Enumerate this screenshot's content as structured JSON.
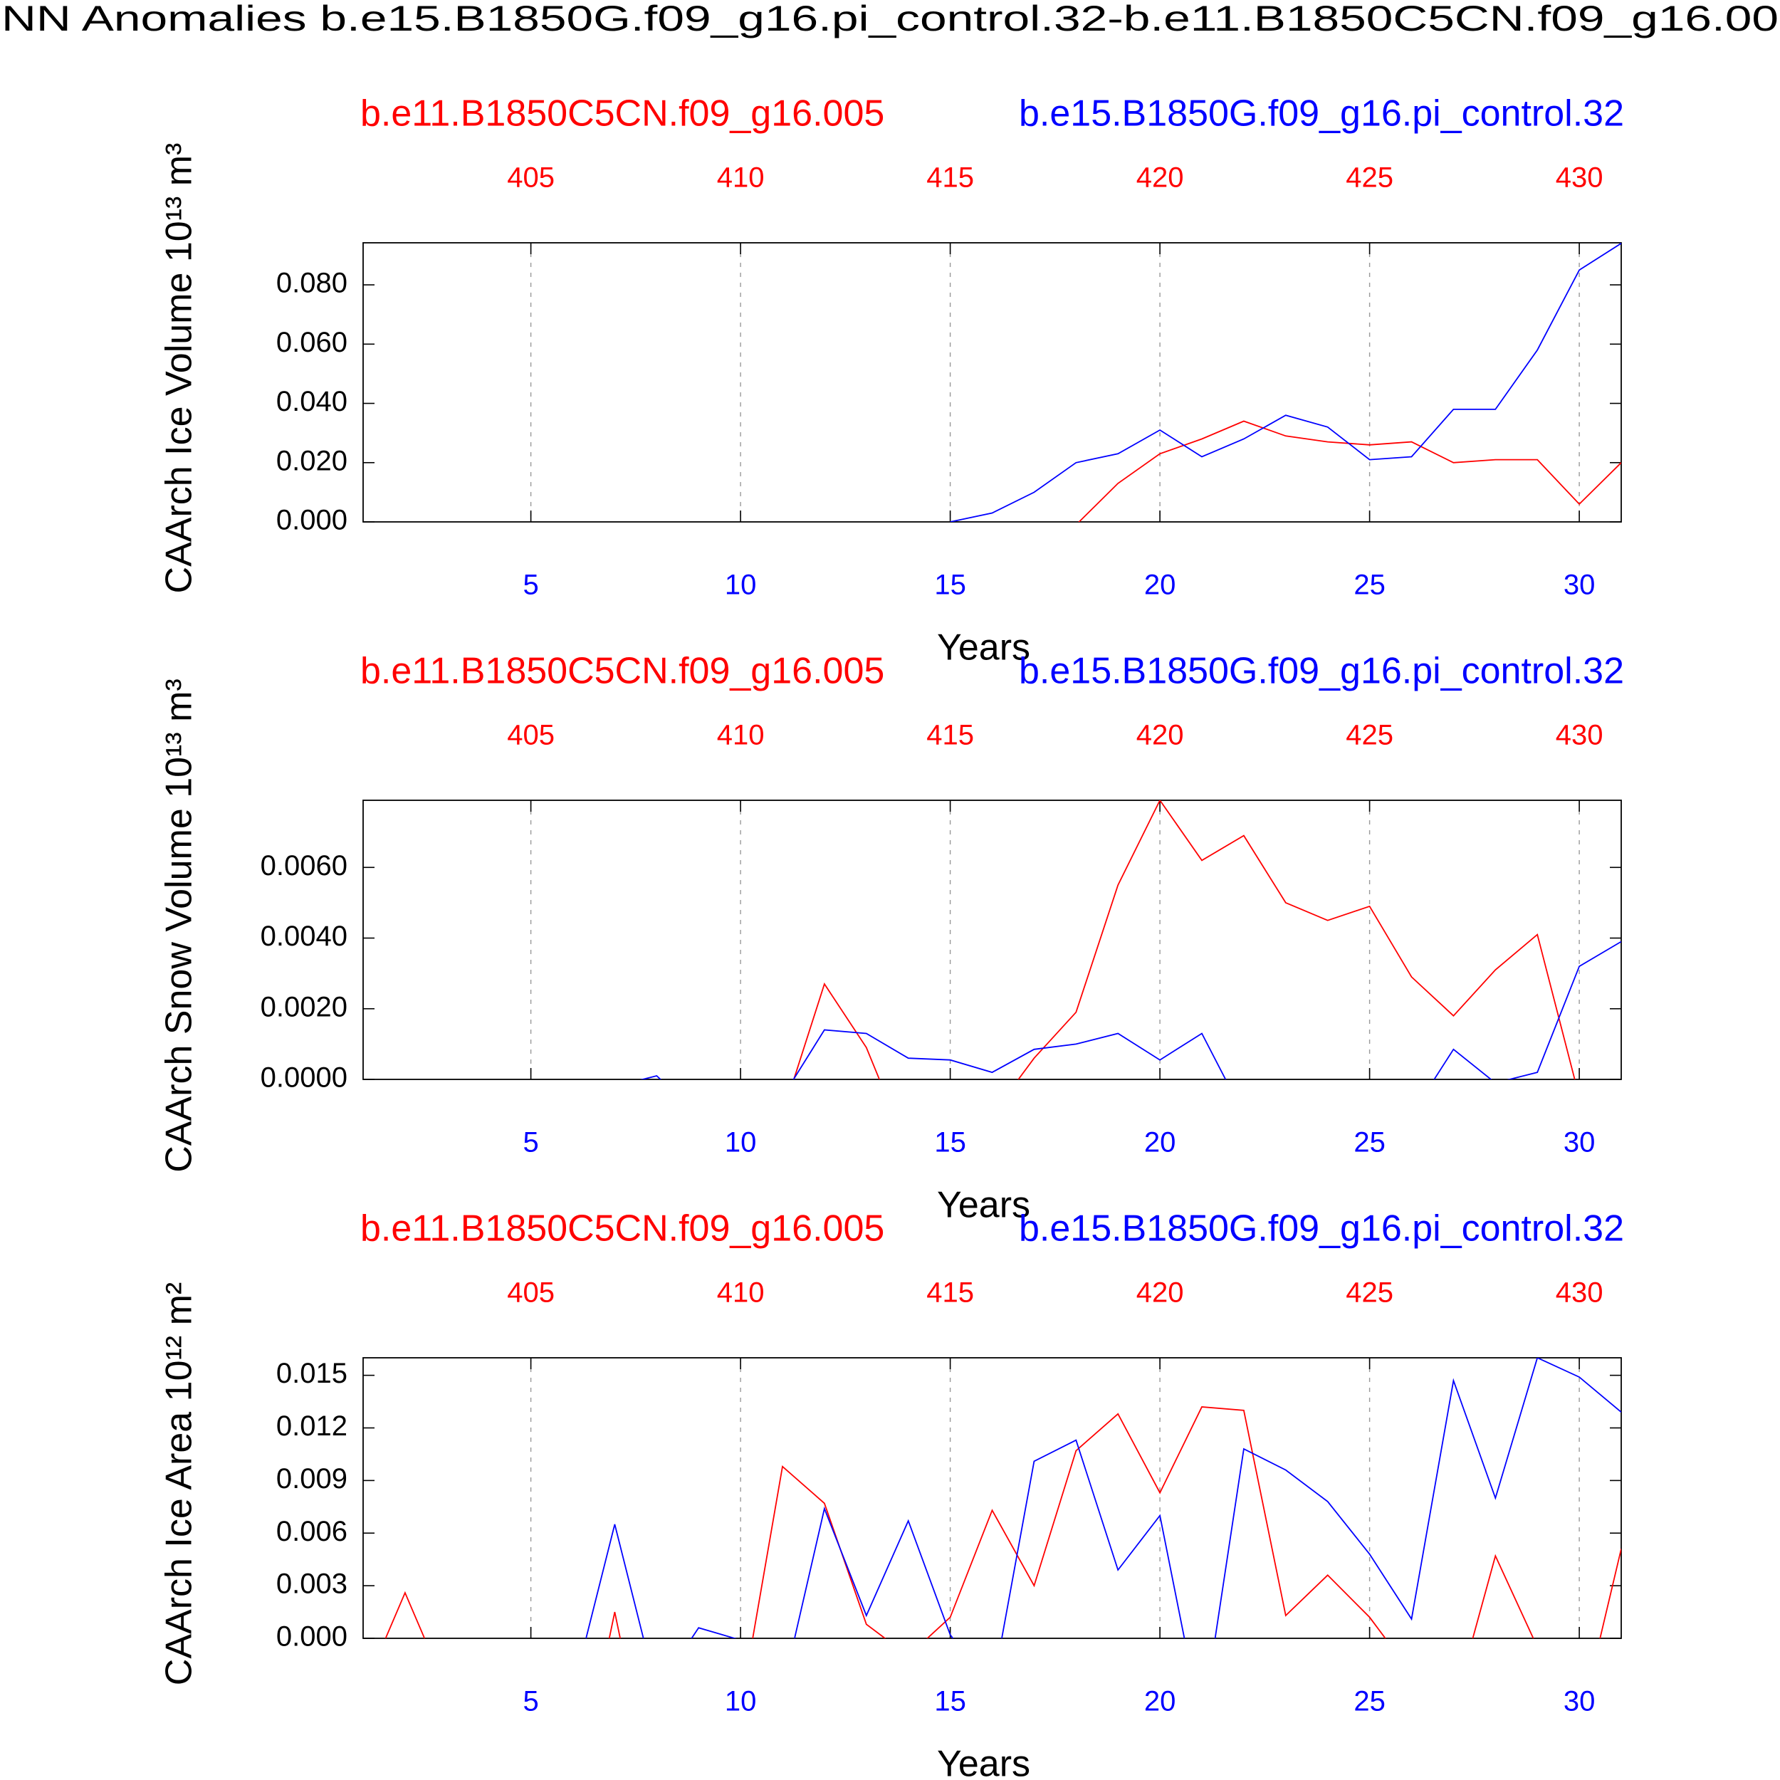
{
  "title": "NN Anomalies b.e15.B1850G.f09_g16.pi_control.32-b.e11.B1850C5CN.f09_g16.00",
  "chart_data": [
    {
      "type": "line",
      "ylabel": "CAArch Ice Volume 10¹³ m³",
      "xlabel": "Years",
      "x": [
        1,
        2,
        3,
        4,
        5,
        6,
        7,
        8,
        9,
        10,
        11,
        12,
        13,
        14,
        15,
        16,
        17,
        18,
        19,
        20,
        21,
        22,
        23,
        24,
        25,
        26,
        27,
        28,
        29,
        30,
        31
      ],
      "xlim": [
        1,
        31
      ],
      "xticks": [
        5,
        10,
        15,
        20,
        25,
        30
      ],
      "x2lim": [
        401,
        431
      ],
      "x2ticks": [
        405,
        410,
        415,
        420,
        425,
        430
      ],
      "ylim": [
        0,
        0.0942
      ],
      "yticks": [
        {
          "value": 0,
          "label": "0.000"
        },
        {
          "value": 0.02,
          "label": "0.020"
        },
        {
          "value": 0.04,
          "label": "0.040"
        },
        {
          "value": 0.06,
          "label": "0.060"
        },
        {
          "value": 0.08,
          "label": "0.080"
        }
      ],
      "grid": "x",
      "series": [
        {
          "name": "b.e11.B1850C5CN.f09_g16.005",
          "color": "#ff0000",
          "values": [
            null,
            null,
            null,
            null,
            null,
            null,
            null,
            null,
            null,
            null,
            null,
            null,
            null,
            null,
            null,
            null,
            null,
            -0.001,
            0.013,
            0.023,
            0.028,
            0.034,
            0.029,
            0.027,
            0.026,
            0.027,
            0.02,
            0.021,
            0.021,
            0.006,
            0.02
          ]
        },
        {
          "name": "b.e15.B1850G.f09_g16.pi_control.32",
          "color": "#0000ff",
          "values": [
            null,
            null,
            null,
            null,
            null,
            null,
            null,
            null,
            null,
            null,
            null,
            null,
            null,
            null,
            0.0,
            0.003,
            0.01,
            0.02,
            0.023,
            0.031,
            0.022,
            0.028,
            0.036,
            0.032,
            0.021,
            0.022,
            0.038,
            0.038,
            0.058,
            0.085,
            0.094
          ]
        }
      ]
    },
    {
      "type": "line",
      "ylabel": "CAArch Snow Volume 10¹³ m³",
      "xlabel": "Years",
      "x": [
        1,
        2,
        3,
        4,
        5,
        6,
        7,
        8,
        9,
        10,
        11,
        12,
        13,
        14,
        15,
        16,
        17,
        18,
        19,
        20,
        21,
        22,
        23,
        24,
        25,
        26,
        27,
        28,
        29,
        30,
        31
      ],
      "xlim": [
        1,
        31
      ],
      "xticks": [
        5,
        10,
        15,
        20,
        25,
        30
      ],
      "x2lim": [
        401,
        431
      ],
      "x2ticks": [
        405,
        410,
        415,
        420,
        425,
        430
      ],
      "ylim": [
        0,
        0.0079
      ],
      "yticks": [
        {
          "value": 0,
          "label": "0.0000"
        },
        {
          "value": 0.002,
          "label": "0.0020"
        },
        {
          "value": 0.004,
          "label": "0.0040"
        },
        {
          "value": 0.006,
          "label": "0.0060"
        }
      ],
      "grid": "x",
      "series": [
        {
          "name": "b.e11.B1850C5CN.f09_g16.005",
          "color": "#ff0000",
          "values": [
            null,
            null,
            null,
            null,
            null,
            null,
            null,
            null,
            null,
            null,
            -0.001,
            0.0027,
            0.0009,
            -0.002,
            null,
            -0.001,
            0.0006,
            0.0019,
            0.0055,
            0.0079,
            0.0062,
            0.0069,
            0.005,
            0.0045,
            0.0049,
            0.0029,
            0.0018,
            0.0031,
            0.0041,
            -0.0005,
            null
          ]
        },
        {
          "name": "b.e15.B1850G.f09_g16.pi_control.32",
          "color": "#0000ff",
          "values": [
            null,
            null,
            null,
            null,
            null,
            null,
            -0.0002,
            0.0001,
            -0.001,
            -0.001,
            -0.0005,
            0.0014,
            0.0013,
            0.0006,
            0.00055,
            0.0002,
            0.00085,
            0.001,
            0.0013,
            0.00055,
            0.0013,
            -0.001,
            null,
            null,
            null,
            -0.001,
            0.00085,
            -0.0001,
            0.0002,
            0.0032,
            0.0039
          ]
        }
      ]
    },
    {
      "type": "line",
      "ylabel": "CAArch Ice Area 10¹² m²",
      "xlabel": "Years",
      "x": [
        1,
        2,
        3,
        4,
        5,
        6,
        7,
        8,
        9,
        10,
        11,
        12,
        13,
        14,
        15,
        16,
        17,
        18,
        19,
        20,
        21,
        22,
        23,
        24,
        25,
        26,
        27,
        28,
        29,
        30,
        31
      ],
      "xlim": [
        1,
        31
      ],
      "xticks": [
        5,
        10,
        15,
        20,
        25,
        30
      ],
      "x2lim": [
        401,
        431
      ],
      "x2ticks": [
        405,
        410,
        415,
        420,
        425,
        430
      ],
      "ylim": [
        0,
        0.016
      ],
      "yticks": [
        {
          "value": 0,
          "label": "0.000"
        },
        {
          "value": 0.003,
          "label": "0.003"
        },
        {
          "value": 0.006,
          "label": "0.006"
        },
        {
          "value": 0.009,
          "label": "0.009"
        },
        {
          "value": 0.012,
          "label": "0.012"
        },
        {
          "value": 0.015,
          "label": "0.015"
        }
      ],
      "grid": "x",
      "series": [
        {
          "name": "b.e11.B1850C5CN.f09_g16.005",
          "color": "#ff0000",
          "values": [
            -0.003,
            0.0026,
            -0.003,
            null,
            null,
            -0.01,
            0.0015,
            -0.01,
            null,
            -0.004,
            0.0098,
            0.0077,
            0.0008,
            -0.001,
            0.0012,
            0.0073,
            0.003,
            0.0107,
            0.0128,
            0.0083,
            0.0132,
            0.013,
            0.0013,
            0.0036,
            0.0012,
            -0.002,
            -0.004,
            0.0047,
            -0.0005,
            -0.005,
            0.0051
          ]
        },
        {
          "name": "b.e15.B1850G.f09_g16.pi_control.32",
          "color": "#0000ff",
          "values": [
            null,
            null,
            null,
            null,
            null,
            -0.003,
            0.0065,
            -0.003,
            0.0006,
            -0.0001,
            -0.003,
            0.0074,
            0.0013,
            0.0067,
            0.0002,
            -0.003,
            0.0101,
            0.0113,
            0.0039,
            0.007,
            -0.005,
            0.0108,
            0.0096,
            0.0078,
            0.0048,
            0.0011,
            0.0147,
            0.008,
            0.016,
            0.0149,
            0.0129
          ]
        }
      ]
    }
  ]
}
